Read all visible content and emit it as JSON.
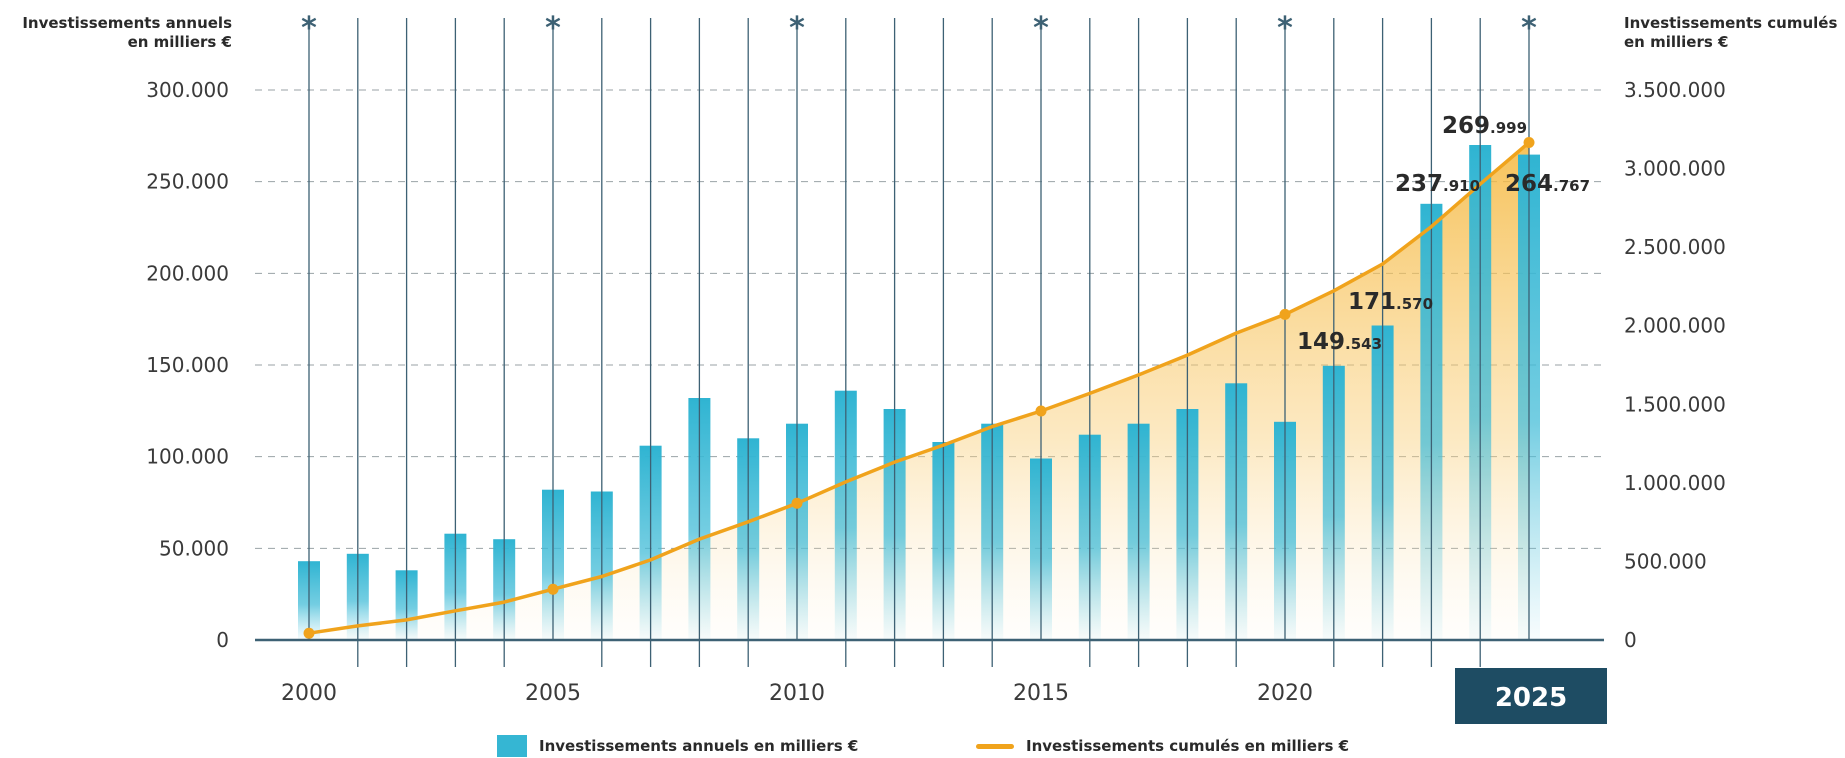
{
  "chart_data": {
    "type": "bar",
    "x": [
      2000,
      2001,
      2002,
      2003,
      2004,
      2005,
      2006,
      2007,
      2008,
      2009,
      2010,
      2011,
      2012,
      2013,
      2014,
      2015,
      2016,
      2017,
      2018,
      2019,
      2020,
      2021,
      2022,
      2023,
      2024,
      2025
    ],
    "x_tick_labels": [
      "2000",
      "2005",
      "2010",
      "2015",
      "2020",
      "2025"
    ],
    "highlighted_tick": "2025",
    "left_axis": {
      "title_line1": "Investissements annuels",
      "title_line2": "en milliers €",
      "ylim": [
        0,
        300000
      ],
      "tick_labels": [
        "0",
        "50.000",
        "100.000",
        "150.000",
        "200.000",
        "250.000",
        "300.000"
      ]
    },
    "right_axis": {
      "title_line1": "Investissements cumulés",
      "title_line2": "en milliers €",
      "ylim": [
        0,
        3500000
      ],
      "tick_labels": [
        "0",
        "500.000",
        "1.000.000",
        "1.500.000",
        "2.000.000",
        "2.500.000",
        "3.000.000",
        "3.500.000"
      ]
    },
    "series": [
      {
        "name": "Investissements annuels en milliers €",
        "type": "bar",
        "axis": "left",
        "values": [
          43000,
          47000,
          38000,
          58000,
          55000,
          82000,
          81000,
          106000,
          132000,
          110000,
          118000,
          136000,
          126000,
          108000,
          118000,
          99000,
          112000,
          118000,
          126000,
          140000,
          119000,
          149543,
          171570,
          237910,
          269999,
          264767
        ]
      },
      {
        "name": "Investissements cumulés en milliers €",
        "type": "area-line",
        "axis": "right",
        "values": [
          43000,
          90000,
          128000,
          186000,
          241000,
          323000,
          404000,
          510000,
          642000,
          752000,
          870000,
          1006000,
          1132000,
          1240000,
          1358000,
          1457000,
          1569000,
          1687000,
          1813000,
          1953000,
          2072000,
          2222000,
          2393000,
          2631000,
          2901000,
          3166000
        ],
        "markers_at": [
          2000,
          2005,
          2010,
          2015,
          2020,
          2025
        ]
      }
    ],
    "data_labels": [
      {
        "year": 2021,
        "big": "149",
        "small": ".543"
      },
      {
        "year": 2022,
        "big": "171",
        "small": ".570"
      },
      {
        "year": 2023,
        "big": "237",
        "small": ".910"
      },
      {
        "year": 2024,
        "big": "269",
        "small": ".999"
      },
      {
        "year": 2025,
        "big": "264",
        "small": ".767"
      }
    ],
    "star_symbol": "*",
    "grid": true,
    "legend_position": "bottom",
    "colors": {
      "bar": "#35b6d3",
      "line": "#f0a31c",
      "area": "#f7c25a",
      "gridline": "#9aa2a6",
      "vline": "#3d6174",
      "highlight_box": "#1e4c63",
      "text": "#2a2a2a"
    }
  },
  "legend": {
    "bar_label": "Investissements annuels en milliers €",
    "line_label": "Investissements cumulés en milliers €"
  }
}
